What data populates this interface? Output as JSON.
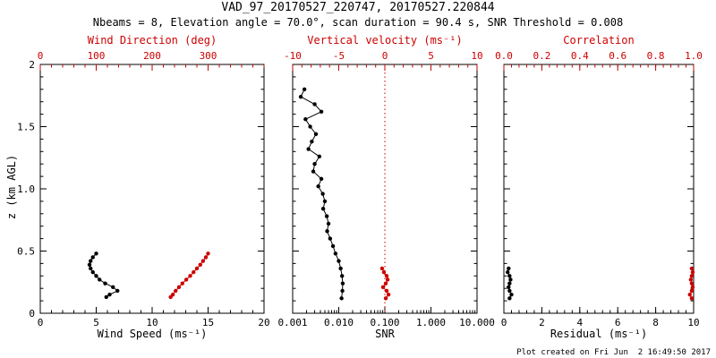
{
  "header": {
    "title": "VAD_97_20170527_220747, 20170527.220844",
    "subtitle": "Nbeams = 8, Elevation angle = 70.0°, scan duration = 90.4 s, SNR Threshold = 0.008"
  },
  "footer": {
    "created": "Plot created on Fri Jun  2 16:49:50 2017"
  },
  "colors": {
    "black": "#000000",
    "red": "#cc0000"
  },
  "chart_data": [
    {
      "type": "line",
      "name": "wind-speed-direction",
      "xlabel": "Wind Speed (ms⁻¹)",
      "x2label": "Wind Direction (deg)",
      "ylabel": "z (km AGL)",
      "xlim": [
        0,
        20
      ],
      "x2lim": [
        0,
        400
      ],
      "ylim": [
        0,
        2
      ],
      "xticks": [
        0,
        5,
        10,
        15,
        20
      ],
      "xtick_labels": [
        "0",
        "5",
        "10",
        "15",
        "20"
      ],
      "x2ticks": [
        0,
        100,
        200,
        300
      ],
      "x2tick_labels": [
        "0",
        "100",
        "200",
        "300"
      ],
      "yticks": [
        0,
        0.5,
        1,
        1.5,
        2
      ],
      "ytick_labels": [
        "0",
        "0.5",
        "1.0",
        "1.5",
        "2"
      ],
      "series": [
        {
          "name": "wind_speed",
          "color": "black",
          "axis": "bottom",
          "z": [
            0.48,
            0.45,
            0.42,
            0.39,
            0.36,
            0.33,
            0.3,
            0.27,
            0.24,
            0.21,
            0.18,
            0.15,
            0.13
          ],
          "values": [
            5.0,
            4.7,
            4.5,
            4.4,
            4.5,
            4.7,
            5.0,
            5.3,
            5.8,
            6.5,
            6.9,
            6.2,
            5.9
          ]
        },
        {
          "name": "wind_direction",
          "color": "red",
          "axis": "top",
          "z": [
            0.48,
            0.45,
            0.42,
            0.39,
            0.36,
            0.33,
            0.3,
            0.27,
            0.24,
            0.21,
            0.18,
            0.15,
            0.13
          ],
          "values": [
            300,
            296,
            291,
            286,
            280,
            274,
            268,
            261,
            254,
            248,
            242,
            237,
            233
          ]
        }
      ]
    },
    {
      "type": "line",
      "name": "snr-vertical-velocity",
      "xlabel": "SNR",
      "x2label": "Vertical velocity (ms⁻¹)",
      "xscale": "log",
      "xlim": [
        0.001,
        10
      ],
      "x2lim": [
        -10,
        10
      ],
      "ylim": [
        0,
        2
      ],
      "xticks": [
        0.001,
        0.01,
        0.1,
        1,
        10
      ],
      "xtick_labels": [
        "0.001",
        "0.010",
        "0.100",
        "1.000",
        "10.000"
      ],
      "x2ticks": [
        -10,
        -5,
        0,
        5,
        10
      ],
      "x2tick_labels": [
        "-10",
        "-5",
        "0",
        "5",
        "10"
      ],
      "yticks": [
        0,
        0.5,
        1,
        1.5,
        2
      ],
      "refline": {
        "axis": "top",
        "value": 0,
        "style": "dotted",
        "color": "red"
      },
      "series": [
        {
          "name": "snr",
          "color": "black",
          "axis": "bottom",
          "z": [
            1.8,
            1.74,
            1.68,
            1.62,
            1.56,
            1.5,
            1.44,
            1.38,
            1.32,
            1.26,
            1.2,
            1.14,
            1.08,
            1.02,
            0.96,
            0.9,
            0.84,
            0.78,
            0.72,
            0.66,
            0.6,
            0.54,
            0.48,
            0.42,
            0.36,
            0.3,
            0.24,
            0.18,
            0.12
          ],
          "values": [
            0.0018,
            0.0015,
            0.003,
            0.0042,
            0.0019,
            0.0024,
            0.0032,
            0.0026,
            0.0022,
            0.0038,
            0.003,
            0.0028,
            0.0042,
            0.0036,
            0.0045,
            0.005,
            0.0046,
            0.0055,
            0.006,
            0.0056,
            0.0065,
            0.0075,
            0.0085,
            0.01,
            0.011,
            0.0118,
            0.0122,
            0.012,
            0.0115
          ]
        },
        {
          "name": "vertical_velocity",
          "color": "red",
          "axis": "top",
          "z": [
            0.36,
            0.33,
            0.3,
            0.27,
            0.24,
            0.21,
            0.18,
            0.15,
            0.12
          ],
          "values": [
            -0.3,
            -0.1,
            0.2,
            0.3,
            0.1,
            -0.2,
            0.2,
            0.4,
            0.1
          ]
        }
      ]
    },
    {
      "type": "line",
      "name": "residual-correlation",
      "xlabel": "Residual (ms⁻¹)",
      "x2label": "Correlation",
      "xlim": [
        0,
        10
      ],
      "x2lim": [
        0,
        1
      ],
      "ylim": [
        0,
        2
      ],
      "xticks": [
        0,
        2,
        4,
        6,
        8,
        10
      ],
      "xtick_labels": [
        "0",
        "2",
        "4",
        "6",
        "8",
        "10"
      ],
      "x2ticks": [
        0,
        0.2,
        0.4,
        0.6,
        0.8,
        1
      ],
      "x2tick_labels": [
        "0.0",
        "0.2",
        "0.4",
        "0.6",
        "0.8",
        "1.0"
      ],
      "yticks": [
        0,
        0.5,
        1,
        1.5,
        2
      ],
      "series": [
        {
          "name": "residual",
          "color": "black",
          "axis": "bottom",
          "z": [
            0.36,
            0.33,
            0.3,
            0.27,
            0.24,
            0.21,
            0.18,
            0.15,
            0.12
          ],
          "values": [
            0.25,
            0.2,
            0.3,
            0.35,
            0.3,
            0.25,
            0.3,
            0.4,
            0.3
          ]
        },
        {
          "name": "correlation",
          "color": "red",
          "axis": "top",
          "z": [
            0.36,
            0.33,
            0.3,
            0.27,
            0.24,
            0.21,
            0.18,
            0.15,
            0.12
          ],
          "values": [
            0.99,
            0.995,
            0.99,
            0.985,
            0.99,
            0.995,
            0.99,
            0.98,
            0.99
          ]
        }
      ]
    }
  ]
}
